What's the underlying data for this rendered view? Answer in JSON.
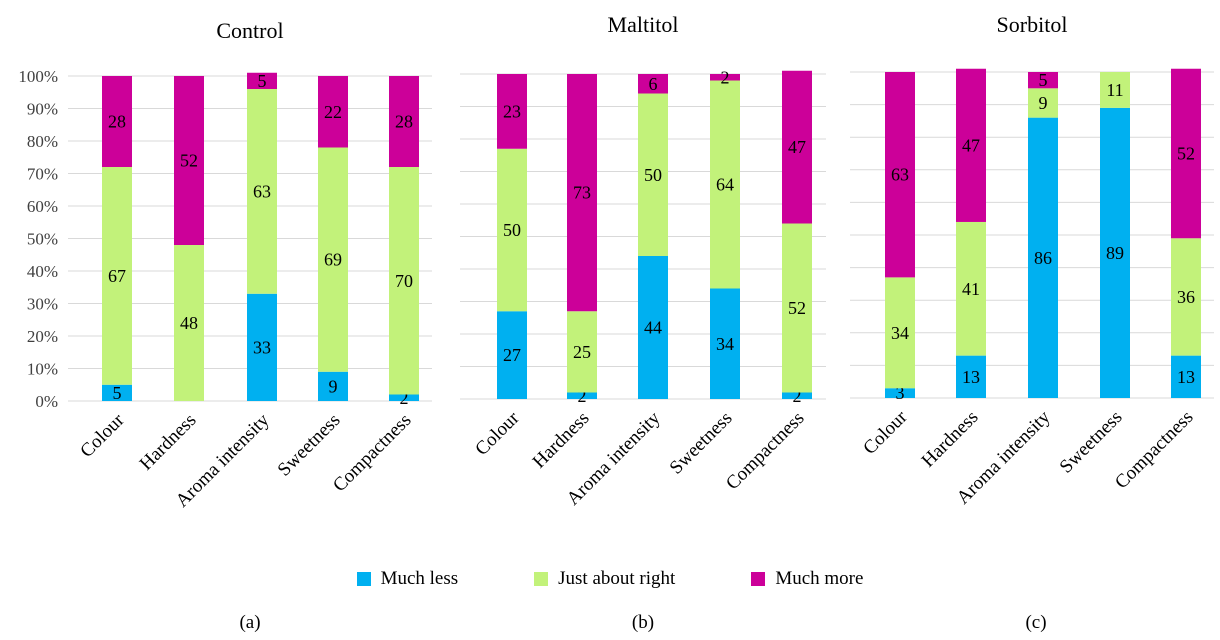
{
  "legend": {
    "much_less": "Much less",
    "just_right": "Just about right",
    "much_more": "Much more"
  },
  "colors": {
    "much_less": "#00B0F0",
    "just_right": "#C2F27A",
    "much_more": "#CC0099",
    "grid": "#D9D9D9"
  },
  "chart_data": [
    {
      "type": "bar",
      "stacked": true,
      "title": "Control",
      "panel_label": "(a)",
      "categories": [
        "Colour",
        "Hardness",
        "Aroma intensity",
        "Sweetness",
        "Compactness"
      ],
      "series": [
        {
          "name": "Much less",
          "values": [
            5,
            0,
            33,
            9,
            2
          ],
          "labels": [
            "5",
            "",
            "33",
            "9",
            "2"
          ]
        },
        {
          "name": "Just about right",
          "values": [
            67,
            48,
            63,
            69,
            70
          ],
          "labels": [
            "67",
            "48",
            "63",
            "69",
            "70"
          ]
        },
        {
          "name": "Much more",
          "values": [
            28,
            52,
            5,
            22,
            28
          ],
          "labels": [
            "28",
            "52",
            "5",
            "22",
            "28"
          ]
        }
      ],
      "yticks": [
        "0%",
        "10%",
        "20%",
        "30%",
        "40%",
        "50%",
        "60%",
        "70%",
        "80%",
        "90%",
        "100%"
      ],
      "ylim": [
        0,
        100
      ],
      "grid": true
    },
    {
      "type": "bar",
      "stacked": true,
      "title": "Maltitol",
      "panel_label": "(b)",
      "categories": [
        "Colour",
        "Hardness",
        "Aroma intensity",
        "Sweetness",
        "Compactness"
      ],
      "series": [
        {
          "name": "Much less",
          "values": [
            27,
            2,
            44,
            34,
            2
          ],
          "labels": [
            "27",
            "2",
            "44",
            "34",
            "2"
          ]
        },
        {
          "name": "Just about right",
          "values": [
            50,
            25,
            50,
            64,
            52
          ],
          "labels": [
            "50",
            "25",
            "50",
            "64",
            "52"
          ]
        },
        {
          "name": "Much more",
          "values": [
            23,
            73,
            6,
            2,
            47
          ],
          "labels": [
            "23",
            "73",
            "6",
            "2",
            "47"
          ]
        }
      ],
      "ylim": [
        0,
        100
      ],
      "grid": true
    },
    {
      "type": "bar",
      "stacked": true,
      "title": "Sorbitol",
      "panel_label": "(c)",
      "categories": [
        "Colour",
        "Hardness",
        "Aroma intensity",
        "Sweetness",
        "Compactness"
      ],
      "series": [
        {
          "name": "Much less",
          "values": [
            3,
            13,
            86,
            89,
            13
          ],
          "labels": [
            "3",
            "13",
            "86",
            "89",
            "13"
          ]
        },
        {
          "name": "Just about right",
          "values": [
            34,
            41,
            9,
            11,
            36
          ],
          "labels": [
            "34",
            "41",
            "9",
            "11",
            "36"
          ]
        },
        {
          "name": "Much more",
          "values": [
            63,
            47,
            5,
            0,
            52
          ],
          "labels": [
            "63",
            "47",
            "5",
            "",
            "52"
          ]
        }
      ],
      "ylim": [
        0,
        100
      ],
      "grid": true
    }
  ]
}
